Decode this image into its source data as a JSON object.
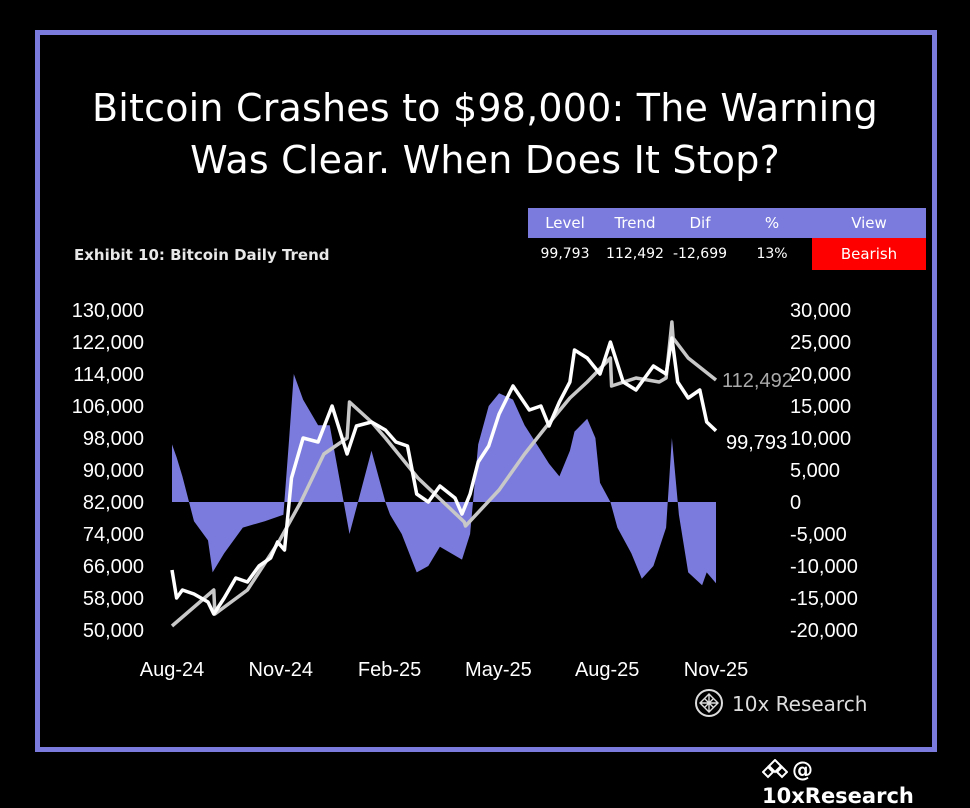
{
  "title_line1": "Bitcoin Crashes to $98,000: The Warning",
  "title_line2": "Was Clear. When Does It Stop?",
  "exhibit": "Exhibit 10: Bitcoin Daily Trend",
  "stats_table": {
    "headers": [
      "Level",
      "Trend",
      "Dif",
      "%",
      "View"
    ],
    "values": [
      "99,793",
      "112,492",
      "-12,699",
      "13%",
      "Bearish"
    ]
  },
  "brand": "10x Research",
  "watermark": "@ 10xResearch",
  "colors": {
    "frame": "#7b7bdd",
    "diff_fill": "#7b7bdd",
    "price": "#ffffff",
    "trend": "#c8c8c8",
    "bearish": "#ff0000"
  },
  "chart_data": {
    "type": "line",
    "x_ticks": [
      "Aug-24",
      "Nov-24",
      "Feb-25",
      "May-25",
      "Aug-25",
      "Nov-25"
    ],
    "left_axis": {
      "ticks": [
        "130,000",
        "122,000",
        "114,000",
        "106,000",
        "98,000",
        "90,000",
        "82,000",
        "74,000",
        "66,000",
        "58,000",
        "50,000"
      ],
      "ylim": [
        50000,
        130000
      ]
    },
    "right_axis": {
      "ticks": [
        "30,000",
        "25,000",
        "20,000",
        "15,000",
        "10,000",
        "5,000",
        "0",
        "-5,000",
        "-10,000",
        "-15,000",
        "-20,000"
      ],
      "ylim": [
        -20000,
        30000
      ]
    },
    "series": [
      {
        "name": "Level",
        "style": "line",
        "end_label": "99,793",
        "x": [
          "2024-08-01",
          "2024-08-05",
          "2024-08-10",
          "2024-08-20",
          "2024-09-01",
          "2024-09-06",
          "2024-09-15",
          "2024-09-25",
          "2024-10-05",
          "2024-10-15",
          "2024-10-25",
          "2024-10-31",
          "2024-11-06",
          "2024-11-12",
          "2024-11-22",
          "2024-12-05",
          "2024-12-17",
          "2024-12-30",
          "2025-01-07",
          "2025-01-20",
          "2025-02-01",
          "2025-02-10",
          "2025-02-20",
          "2025-02-28",
          "2025-03-10",
          "2025-03-20",
          "2025-04-02",
          "2025-04-08",
          "2025-04-15",
          "2025-04-22",
          "2025-05-01",
          "2025-05-10",
          "2025-05-22",
          "2025-06-05",
          "2025-06-15",
          "2025-06-22",
          "2025-07-01",
          "2025-07-10",
          "2025-07-14",
          "2025-07-25",
          "2025-08-05",
          "2025-08-14",
          "2025-08-25",
          "2025-09-05",
          "2025-09-20",
          "2025-10-01",
          "2025-10-06",
          "2025-10-11",
          "2025-10-20",
          "2025-10-30",
          "2025-11-05",
          "2025-11-13"
        ],
        "y": [
          65000,
          58000,
          60000,
          59000,
          57000,
          54000,
          58000,
          63000,
          62000,
          66000,
          68000,
          72000,
          70000,
          88000,
          98000,
          97000,
          106000,
          94000,
          101000,
          102000,
          100000,
          97000,
          96000,
          84000,
          82000,
          86000,
          83000,
          79000,
          84000,
          92000,
          96000,
          104000,
          111000,
          105000,
          106000,
          101000,
          107000,
          112000,
          120000,
          118000,
          114000,
          122000,
          112000,
          110000,
          116000,
          114000,
          123000,
          112000,
          108000,
          110000,
          102000,
          99793
        ]
      },
      {
        "name": "Trend",
        "style": "line",
        "end_label": "112,492",
        "x": [
          "2024-08-01",
          "2024-09-06",
          "2024-09-07",
          "2024-10-05",
          "2024-11-01",
          "2024-11-20",
          "2024-12-10",
          "2024-12-30",
          "2025-01-01",
          "2025-01-20",
          "2025-02-01",
          "2025-03-01",
          "2025-04-10",
          "2025-04-11",
          "2025-05-10",
          "2025-06-01",
          "2025-06-20",
          "2025-07-10",
          "2025-07-25",
          "2025-08-14",
          "2025-08-15",
          "2025-09-05",
          "2025-09-25",
          "2025-10-01",
          "2025-10-06",
          "2025-10-07",
          "2025-10-20",
          "2025-11-13"
        ],
        "y": [
          51000,
          60000,
          54000,
          60000,
          72000,
          82000,
          94000,
          98000,
          107000,
          102000,
          98000,
          88000,
          77000,
          76000,
          85000,
          94000,
          101000,
          108000,
          112000,
          118000,
          111000,
          113000,
          112000,
          113000,
          127000,
          123000,
          118000,
          112492
        ]
      },
      {
        "name": "Dif",
        "style": "area",
        "axis": "right",
        "x": [
          "2024-08-01",
          "2024-08-05",
          "2024-08-10",
          "2024-08-20",
          "2024-09-01",
          "2024-09-05",
          "2024-09-15",
          "2024-10-01",
          "2024-10-20",
          "2024-11-05",
          "2024-11-10",
          "2024-11-14",
          "2024-11-22",
          "2024-12-05",
          "2024-12-15",
          "2025-01-01",
          "2025-01-20",
          "2025-02-01",
          "2025-02-05",
          "2025-02-15",
          "2025-02-28",
          "2025-03-10",
          "2025-03-20",
          "2025-04-08",
          "2025-04-15",
          "2025-04-22",
          "2025-05-01",
          "2025-05-10",
          "2025-05-22",
          "2025-06-01",
          "2025-06-15",
          "2025-06-22",
          "2025-07-01",
          "2025-07-10",
          "2025-07-14",
          "2025-07-25",
          "2025-08-01",
          "2025-08-05",
          "2025-08-14",
          "2025-08-20",
          "2025-09-01",
          "2025-09-10",
          "2025-09-20",
          "2025-10-01",
          "2025-10-06",
          "2025-10-12",
          "2025-10-20",
          "2025-11-01",
          "2025-11-05",
          "2025-11-13"
        ],
        "y": [
          9000,
          7000,
          4000,
          -3000,
          -6000,
          -11000,
          -8000,
          -4000,
          -3000,
          -2000,
          10000,
          20000,
          16000,
          12000,
          12000,
          -5000,
          8000,
          0,
          -2000,
          -5000,
          -11000,
          -10000,
          -7000,
          -9000,
          -5000,
          9000,
          15000,
          17000,
          16000,
          12000,
          8000,
          6000,
          4000,
          8000,
          11000,
          13000,
          10000,
          3000,
          0,
          -4000,
          -8000,
          -12000,
          -10000,
          -4000,
          10000,
          -2000,
          -11000,
          -13000,
          -11000,
          -12699
        ]
      }
    ]
  }
}
